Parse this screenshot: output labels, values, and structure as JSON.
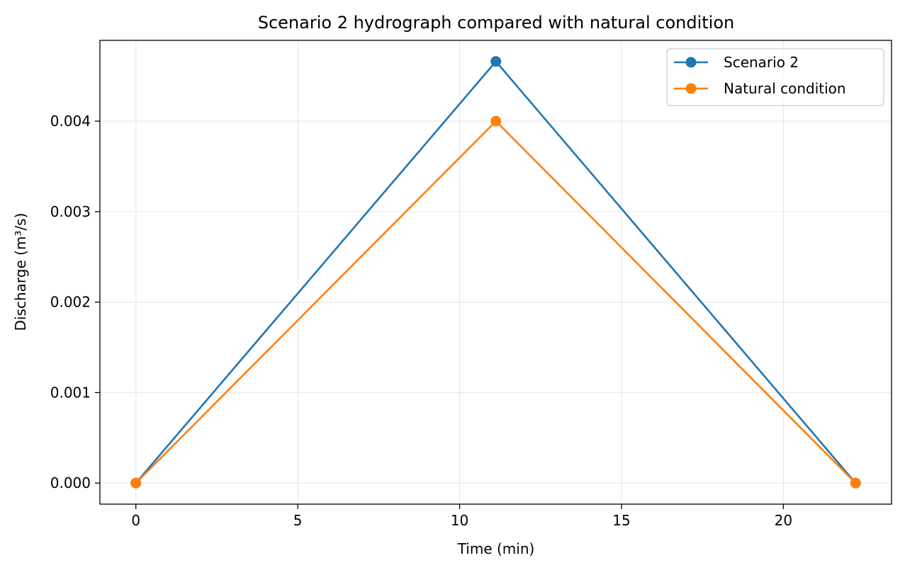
{
  "chart_data": {
    "type": "line",
    "title": "Scenario 2 hydrograph compared with natural condition",
    "xlabel": "Time (min)",
    "ylabel": "Discharge (m³/s)",
    "xlim": [
      -1.11,
      23.34
    ],
    "ylim": [
      -0.000233,
      0.004893
    ],
    "xticks": [
      0,
      5,
      10,
      15,
      20
    ],
    "xtick_labels": [
      "0",
      "5",
      "10",
      "15",
      "20"
    ],
    "yticks": [
      0.0,
      0.001,
      0.002,
      0.003,
      0.004
    ],
    "ytick_labels": [
      "0.000",
      "0.001",
      "0.002",
      "0.003",
      "0.004"
    ],
    "grid": true,
    "legend_position": "top-right",
    "series": [
      {
        "name": "Scenario 2",
        "color": "#1f77b4",
        "marker": "circle",
        "x": [
          0,
          11.12,
          22.23
        ],
        "y": [
          0.0,
          0.00466,
          0.0
        ]
      },
      {
        "name": "Natural condition",
        "color": "#ff7f0e",
        "marker": "circle",
        "x": [
          0,
          11.12,
          22.23
        ],
        "y": [
          0.0,
          0.004,
          0.0
        ]
      }
    ]
  }
}
